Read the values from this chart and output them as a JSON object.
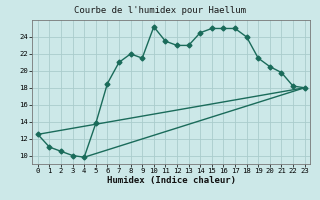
{
  "title": "Courbe de l'humidex pour Haellum",
  "xlabel": "Humidex (Indice chaleur)",
  "xlim": [
    -0.5,
    23.5
  ],
  "ylim": [
    9,
    26
  ],
  "yticks": [
    10,
    12,
    14,
    16,
    18,
    20,
    22,
    24
  ],
  "xticks": [
    0,
    1,
    2,
    3,
    4,
    5,
    6,
    7,
    8,
    9,
    10,
    11,
    12,
    13,
    14,
    15,
    16,
    17,
    18,
    19,
    20,
    21,
    22,
    23
  ],
  "bg_color": "#cce8e8",
  "grid_color": "#aacccc",
  "line_color": "#1a6b5a",
  "line1_x": [
    0,
    1,
    2,
    3,
    4,
    5,
    6,
    7,
    8,
    9,
    10,
    11,
    12,
    13,
    14,
    15,
    16,
    17,
    18,
    19,
    20,
    21,
    22,
    23
  ],
  "line1_y": [
    12.5,
    11.0,
    10.5,
    10.0,
    9.8,
    13.8,
    18.5,
    21.0,
    22.0,
    21.5,
    25.2,
    23.5,
    23.0,
    23.0,
    24.5,
    25.0,
    25.0,
    25.0,
    24.0,
    21.5,
    20.5,
    19.8,
    18.2,
    18.0
  ],
  "line2_x": [
    0,
    23
  ],
  "line2_y": [
    12.5,
    18.0
  ],
  "line3_x": [
    4,
    23
  ],
  "line3_y": [
    9.8,
    18.0
  ],
  "markersize": 2.5,
  "linewidth": 1.0
}
